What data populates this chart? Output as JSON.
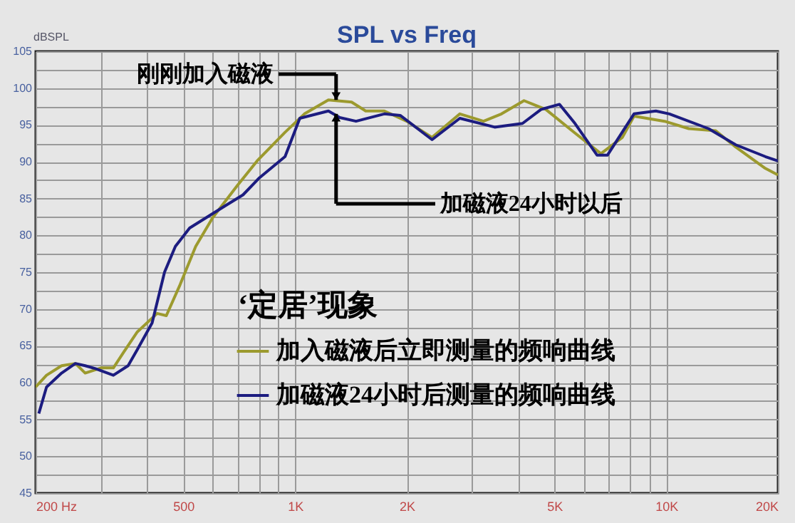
{
  "chart_data": {
    "type": "line",
    "title": "SPL vs Freq",
    "ylabel": "dBSPL",
    "log": "x",
    "grid": true,
    "legend": "bottom",
    "line_style": "solid",
    "marker": "none",
    "xlim": [
      200,
      20000
    ],
    "xticks": [
      {
        "value": 200,
        "label": "200 Hz"
      },
      {
        "value": 300,
        "label": null
      },
      {
        "value": 400,
        "label": null
      },
      500,
      {
        "value": 600,
        "label": null
      },
      {
        "value": 700,
        "label": null
      },
      {
        "value": 800,
        "label": null
      },
      {
        "value": 900,
        "label": null
      },
      {
        "value": 1000,
        "label": "1K"
      },
      {
        "value": 2000,
        "label": "2K"
      },
      {
        "value": 3000,
        "label": null
      },
      {
        "value": 4000,
        "label": null
      },
      {
        "value": 5000,
        "label": "5K"
      },
      {
        "value": 6000,
        "label": null
      },
      {
        "value": 7000,
        "label": null
      },
      {
        "value": 8000,
        "label": null
      },
      {
        "value": 9000,
        "label": null
      },
      {
        "value": 10000,
        "label": "10K"
      },
      {
        "value": 20000,
        "label": "20K"
      }
    ],
    "ylim": [
      45,
      105
    ],
    "yticks": [
      45,
      {
        "value": 47.5,
        "label": null
      },
      50,
      {
        "value": 52.5,
        "label": null
      },
      55,
      {
        "value": 57.5,
        "label": null
      },
      60,
      {
        "value": 62.5,
        "label": null
      },
      65,
      {
        "value": 67.5,
        "label": null
      },
      70,
      {
        "value": 72.5,
        "label": null
      },
      75,
      {
        "value": 77.5,
        "label": null
      },
      80,
      {
        "value": 82.5,
        "label": null
      },
      85,
      {
        "value": 87.5,
        "label": null
      },
      90,
      {
        "value": 92.5,
        "label": null
      },
      95,
      {
        "value": 97.5,
        "label": null
      },
      100,
      {
        "value": 102.5,
        "label": null
      },
      105
    ],
    "series": [
      {
        "name": "加入磁液后立即测量的频响曲线",
        "color": "#9c9a2e",
        "x": [
          200,
          214,
          235,
          256,
          272,
          300,
          324,
          346,
          376,
          425,
          450,
          490,
          540,
          600,
          700,
          790,
          940,
          1060,
          1230,
          1420,
          1550,
          1740,
          2000,
          2340,
          2780,
          3220,
          3600,
          4140,
          4740,
          5680,
          6670,
          7620,
          8190,
          9900,
          11500,
          13600,
          15400,
          18500,
          20000
        ],
        "values": [
          59.4,
          61,
          62.3,
          62.6,
          61.3,
          62,
          62,
          64.2,
          66.9,
          69.4,
          69.1,
          73.3,
          78.5,
          82.4,
          86.8,
          90.1,
          94,
          96.5,
          98.4,
          98.1,
          96.9,
          96.9,
          95.5,
          93.3,
          96.5,
          95.5,
          96.5,
          98.3,
          97.1,
          93.9,
          91.1,
          93.3,
          96.2,
          95.5,
          94.5,
          94.2,
          92,
          89.1,
          88.2
        ]
      },
      {
        "name": "加磁液24小时后测量的频响曲线",
        "color": "#1c1c80",
        "x": [
          204,
          214,
          235,
          256,
          272,
          290,
          324,
          355,
          376,
          412,
          445,
          476,
          520,
          643,
          724,
          801,
          940,
          1030,
          1230,
          1320,
          1460,
          1740,
          1920,
          2340,
          2780,
          3450,
          4100,
          4600,
          5160,
          5680,
          6510,
          6950,
          8190,
          9380,
          10200,
          13000,
          15400,
          18500,
          20000
        ],
        "values": [
          55.8,
          59.4,
          61.3,
          62.6,
          62.3,
          61.9,
          61,
          62.3,
          64.5,
          68.1,
          75,
          78.5,
          81,
          83.9,
          85.5,
          87.8,
          90.7,
          95.9,
          96.9,
          96,
          95.5,
          96.5,
          96.3,
          93,
          95.9,
          94.7,
          95.2,
          97.1,
          97.8,
          95.2,
          90.9,
          90.9,
          96.5,
          96.9,
          96.5,
          94.5,
          92.3,
          90.7,
          90.1
        ]
      }
    ],
    "annotations": [
      {
        "text": "刚刚加入磁液",
        "x": 1290,
        "y": 98.4
      },
      "加磁液24小时以后",
      "‘定居’现象"
    ]
  }
}
